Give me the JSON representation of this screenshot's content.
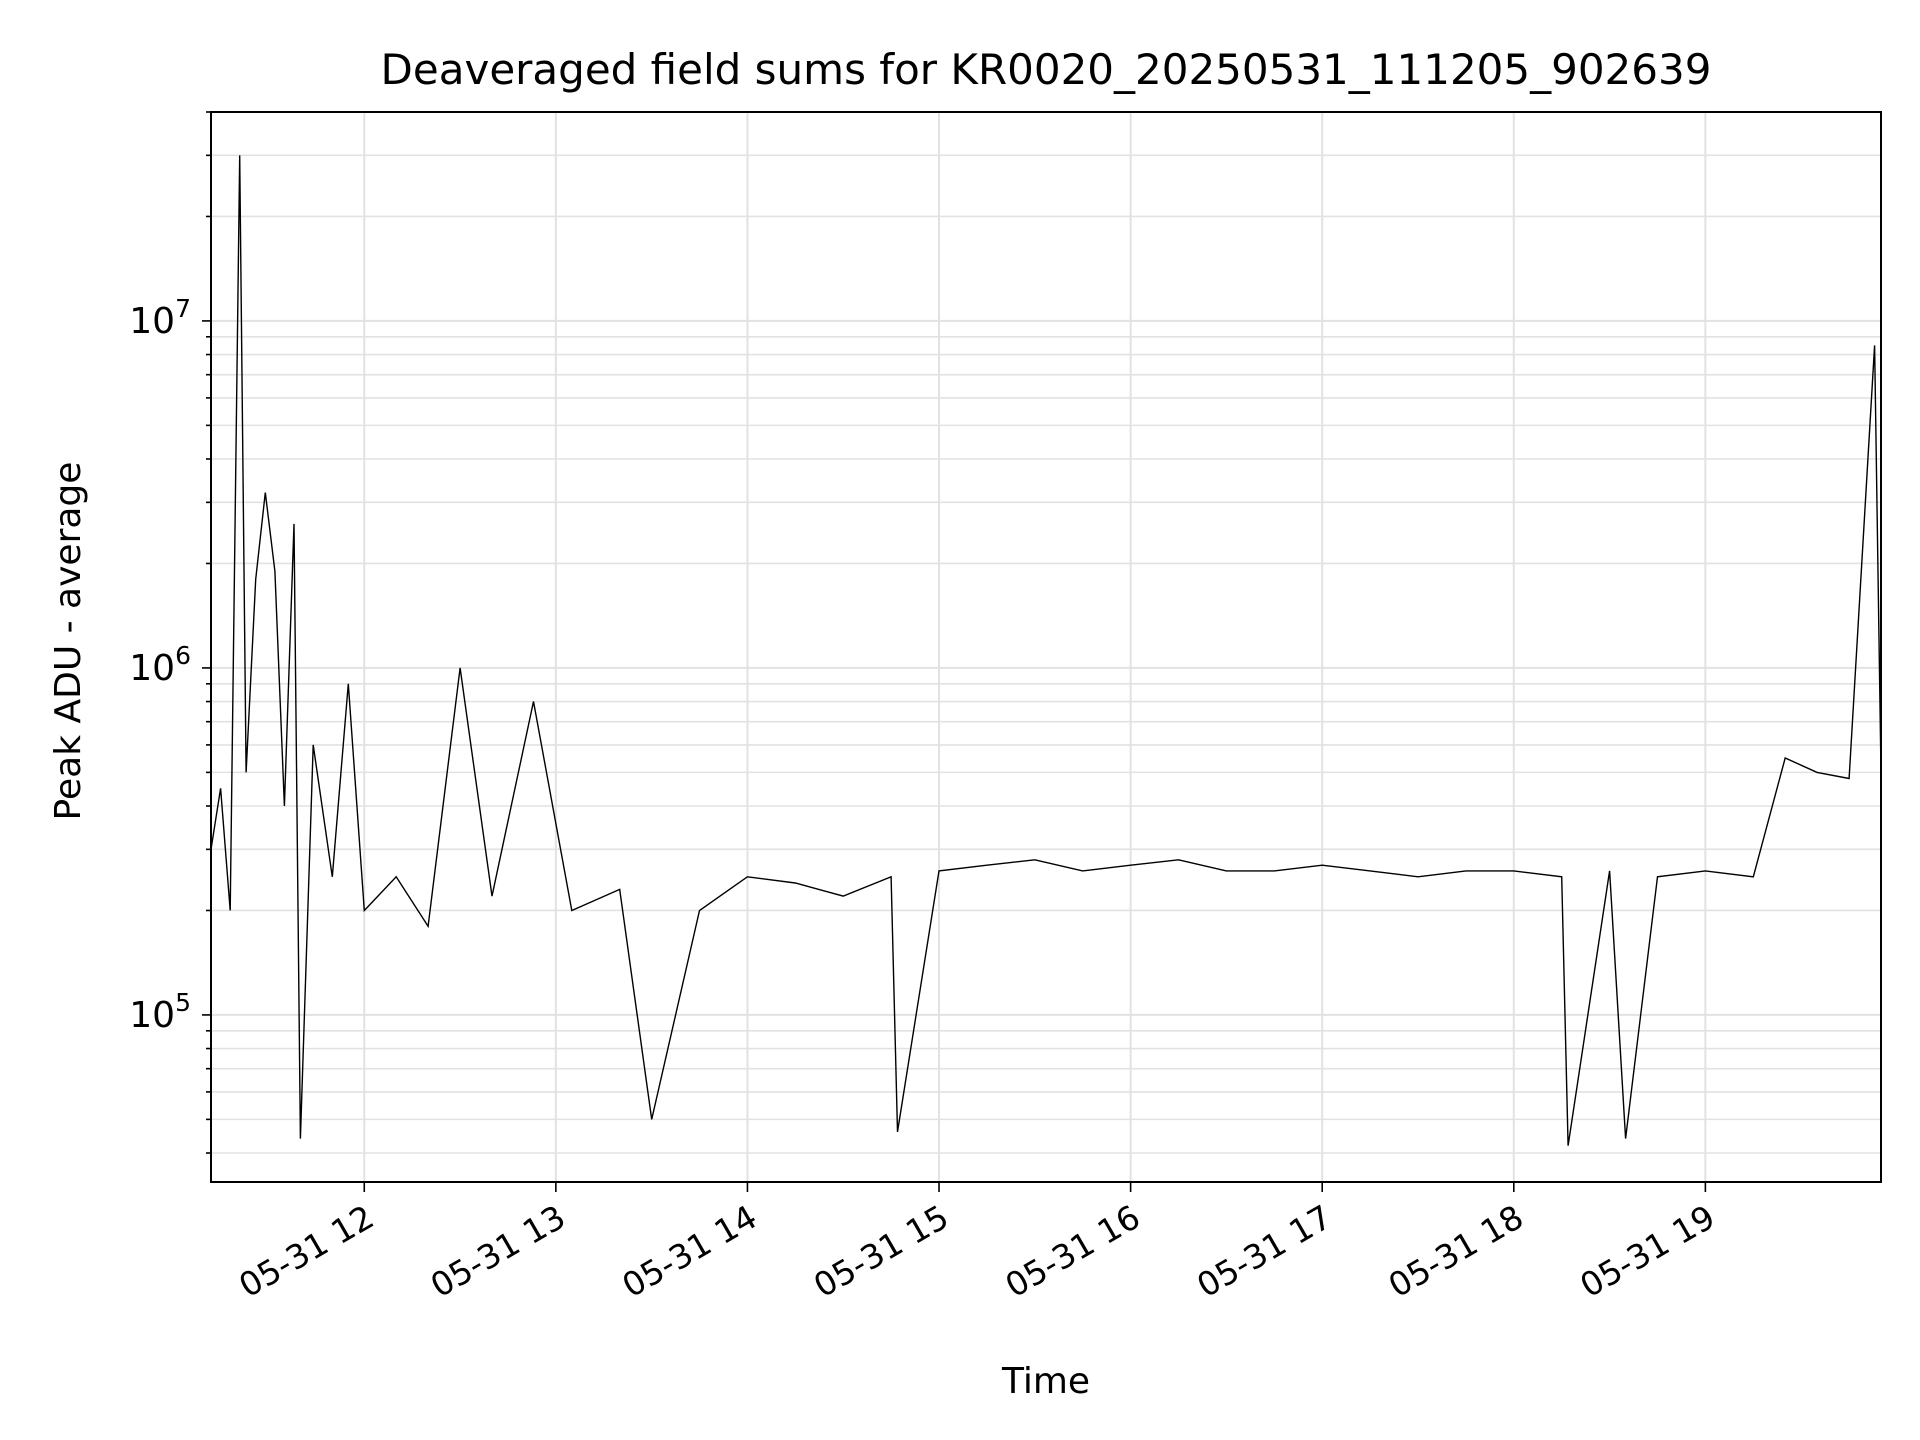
{
  "chart_data": {
    "type": "line",
    "title": "Deaveraged field sums for KR0020_20250531_111205_902639",
    "xlabel": "Time",
    "ylabel": "Peak ADU - average",
    "x_range": [
      "2025-05-31 11:12",
      "2025-05-31 19:55"
    ],
    "xticks": [
      {
        "time": "2025-05-31 12:00",
        "label": "05-31 12"
      },
      {
        "time": "2025-05-31 13:00",
        "label": "05-31 13"
      },
      {
        "time": "2025-05-31 14:00",
        "label": "05-31 14"
      },
      {
        "time": "2025-05-31 15:00",
        "label": "05-31 15"
      },
      {
        "time": "2025-05-31 16:00",
        "label": "05-31 16"
      },
      {
        "time": "2025-05-31 17:00",
        "label": "05-31 17"
      },
      {
        "time": "2025-05-31 18:00",
        "label": "05-31 18"
      },
      {
        "time": "2025-05-31 19:00",
        "label": "05-31 19"
      }
    ],
    "yscale": "log",
    "ylim": [
      33000,
      40000000
    ],
    "yticks": [
      {
        "value": 100000,
        "base": "10",
        "exp": "5"
      },
      {
        "value": 1000000,
        "base": "10",
        "exp": "6"
      },
      {
        "value": 10000000,
        "base": "10",
        "exp": "7"
      }
    ],
    "grid": true,
    "series": [
      {
        "color": "#000000",
        "points": [
          [
            "2025-05-31 11:12",
            300000
          ],
          [
            "2025-05-31 11:15",
            450000
          ],
          [
            "2025-05-31 11:18",
            200000
          ],
          [
            "2025-05-31 11:21",
            30000000
          ],
          [
            "2025-05-31 11:23",
            500000
          ],
          [
            "2025-05-31 11:26",
            1800000
          ],
          [
            "2025-05-31 11:29",
            3200000
          ],
          [
            "2025-05-31 11:32",
            1900000
          ],
          [
            "2025-05-31 11:35",
            400000
          ],
          [
            "2025-05-31 11:38",
            2600000
          ],
          [
            "2025-05-31 11:40",
            44000
          ],
          [
            "2025-05-31 11:44",
            600000
          ],
          [
            "2025-05-31 11:50",
            250000
          ],
          [
            "2025-05-31 11:55",
            900000
          ],
          [
            "2025-05-31 12:00",
            200000
          ],
          [
            "2025-05-31 12:10",
            250000
          ],
          [
            "2025-05-31 12:20",
            180000
          ],
          [
            "2025-05-31 12:30",
            1000000
          ],
          [
            "2025-05-31 12:40",
            220000
          ],
          [
            "2025-05-31 12:53",
            800000
          ],
          [
            "2025-05-31 13:05",
            200000
          ],
          [
            "2025-05-31 13:20",
            230000
          ],
          [
            "2025-05-31 13:30",
            50000
          ],
          [
            "2025-05-31 13:45",
            200000
          ],
          [
            "2025-05-31 14:00",
            250000
          ],
          [
            "2025-05-31 14:15",
            240000
          ],
          [
            "2025-05-31 14:30",
            220000
          ],
          [
            "2025-05-31 14:45",
            250000
          ],
          [
            "2025-05-31 14:47",
            46000
          ],
          [
            "2025-05-31 15:00",
            260000
          ],
          [
            "2025-05-31 15:15",
            270000
          ],
          [
            "2025-05-31 15:30",
            280000
          ],
          [
            "2025-05-31 15:45",
            260000
          ],
          [
            "2025-05-31 16:00",
            270000
          ],
          [
            "2025-05-31 16:15",
            280000
          ],
          [
            "2025-05-31 16:30",
            260000
          ],
          [
            "2025-05-31 16:45",
            260000
          ],
          [
            "2025-05-31 17:00",
            270000
          ],
          [
            "2025-05-31 17:15",
            260000
          ],
          [
            "2025-05-31 17:30",
            250000
          ],
          [
            "2025-05-31 17:45",
            260000
          ],
          [
            "2025-05-31 18:00",
            260000
          ],
          [
            "2025-05-31 18:15",
            250000
          ],
          [
            "2025-05-31 18:17",
            42000
          ],
          [
            "2025-05-31 18:30",
            260000
          ],
          [
            "2025-05-31 18:35",
            44000
          ],
          [
            "2025-05-31 18:45",
            250000
          ],
          [
            "2025-05-31 19:00",
            260000
          ],
          [
            "2025-05-31 19:15",
            250000
          ],
          [
            "2025-05-31 19:25",
            550000
          ],
          [
            "2025-05-31 19:35",
            500000
          ],
          [
            "2025-05-31 19:45",
            480000
          ],
          [
            "2025-05-31 19:53",
            8500000
          ],
          [
            "2025-05-31 19:55",
            500000
          ]
        ]
      }
    ]
  }
}
